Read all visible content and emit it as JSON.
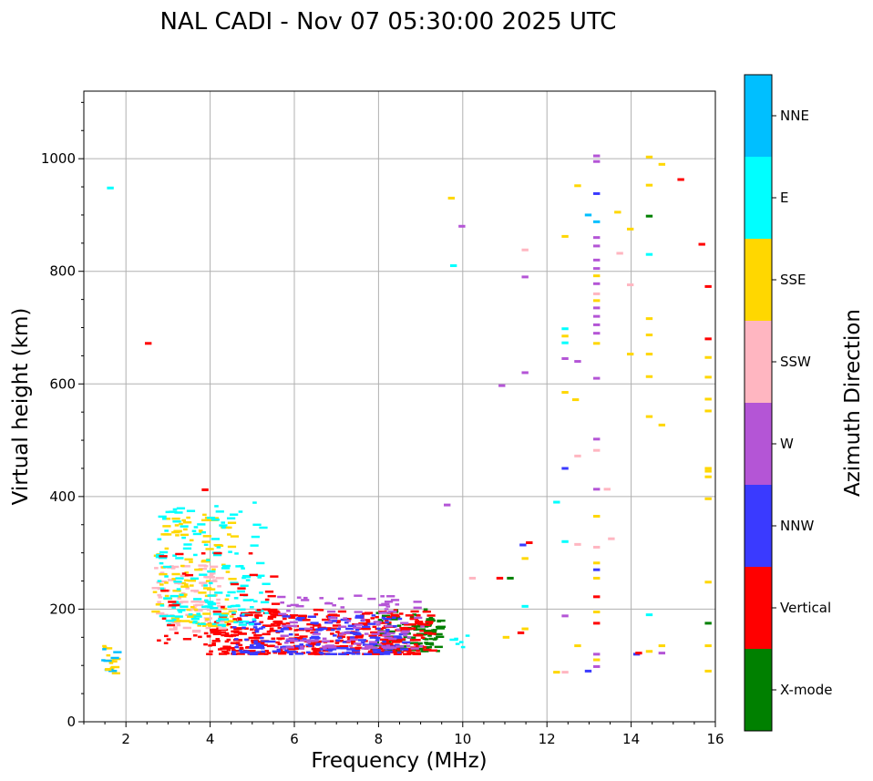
{
  "chart_data": {
    "type": "scatter",
    "subtype": "ionogram",
    "title": "NAL CADI - Nov 07 05:30:00 2025 UTC",
    "xlabel": "Frequency (MHz)",
    "ylabel": "Virtual height (km)",
    "xlim": [
      1,
      16
    ],
    "ylim": [
      0,
      1120
    ],
    "xticks": [
      2,
      4,
      6,
      8,
      10,
      12,
      14,
      16
    ],
    "yticks": [
      0,
      200,
      400,
      600,
      800,
      1000
    ],
    "grid": true,
    "colorbar": {
      "label": "Azimuth Direction",
      "categories": [
        {
          "name": "X-mode",
          "color": "#008000"
        },
        {
          "name": "Vertical",
          "color": "#ff0000"
        },
        {
          "name": "NNW",
          "color": "#3a3aff"
        },
        {
          "name": "W",
          "color": "#b455d6"
        },
        {
          "name": "SSW",
          "color": "#ffb6c1"
        },
        {
          "name": "SSE",
          "color": "#ffd700"
        },
        {
          "name": "E",
          "color": "#00ffff"
        },
        {
          "name": "NNE",
          "color": "#00bfff"
        }
      ]
    },
    "clusters": [
      {
        "category": "X-mode",
        "x": [
          7.8,
          9.4
        ],
        "y": [
          125,
          200
        ],
        "n": 110
      },
      {
        "category": "Vertical",
        "x": [
          3.9,
          9.2
        ],
        "y": [
          120,
          200
        ],
        "n": 380
      },
      {
        "category": "NNW",
        "x": [
          4.5,
          8.6
        ],
        "y": [
          120,
          190
        ],
        "n": 170
      },
      {
        "category": "W",
        "x": [
          5.5,
          9.0
        ],
        "y": [
          130,
          225
        ],
        "n": 110
      },
      {
        "category": "SSW",
        "x": [
          2.6,
          4.2
        ],
        "y": [
          160,
          280
        ],
        "n": 90
      },
      {
        "category": "SSE",
        "x": [
          2.6,
          4.5
        ],
        "y": [
          170,
          370
        ],
        "n": 110
      },
      {
        "category": "E",
        "x": [
          2.7,
          5.3
        ],
        "y": [
          170,
          390
        ],
        "n": 150
      },
      {
        "category": "Vertical",
        "x": [
          2.5,
          5.5
        ],
        "y": [
          130,
          300
        ],
        "n": 50
      },
      {
        "category": "SSE",
        "x": [
          1.4,
          1.7
        ],
        "y": [
          85,
          140
        ],
        "n": 12
      },
      {
        "category": "NNE",
        "x": [
          1.4,
          1.7
        ],
        "y": [
          90,
          135
        ],
        "n": 8
      },
      {
        "category": "E",
        "x": [
          9.5,
          10.1
        ],
        "y": [
          130,
          160
        ],
        "n": 6
      }
    ],
    "points": [
      {
        "category": "E",
        "x": 1.6,
        "y": 948
      },
      {
        "category": "Vertical",
        "x": 2.5,
        "y": 672
      },
      {
        "category": "Vertical",
        "x": 3.85,
        "y": 412
      },
      {
        "category": "W",
        "x": 9.6,
        "y": 385
      },
      {
        "category": "W",
        "x": 10.9,
        "y": 597
      },
      {
        "category": "SSE",
        "x": 9.7,
        "y": 930
      },
      {
        "category": "W",
        "x": 9.95,
        "y": 880
      },
      {
        "category": "E",
        "x": 9.75,
        "y": 810
      },
      {
        "category": "Vertical",
        "x": 10.85,
        "y": 255
      },
      {
        "category": "X-mode",
        "x": 11.1,
        "y": 255
      },
      {
        "category": "SSW",
        "x": 10.2,
        "y": 255
      },
      {
        "category": "SSE",
        "x": 11.0,
        "y": 150
      },
      {
        "category": "W",
        "x": 11.45,
        "y": 790
      },
      {
        "category": "SSW",
        "x": 11.45,
        "y": 838
      },
      {
        "category": "W",
        "x": 11.45,
        "y": 620
      },
      {
        "category": "NNW",
        "x": 11.4,
        "y": 314
      },
      {
        "category": "Vertical",
        "x": 11.55,
        "y": 318
      },
      {
        "category": "SSE",
        "x": 11.45,
        "y": 290
      },
      {
        "category": "E",
        "x": 11.45,
        "y": 205
      },
      {
        "category": "SSE",
        "x": 11.45,
        "y": 165
      },
      {
        "category": "Vertical",
        "x": 11.35,
        "y": 158
      },
      {
        "category": "E",
        "x": 12.2,
        "y": 390
      },
      {
        "category": "SSE",
        "x": 12.2,
        "y": 88
      },
      {
        "category": "SSW",
        "x": 12.4,
        "y": 88
      },
      {
        "category": "SSE",
        "x": 12.4,
        "y": 862
      },
      {
        "category": "E",
        "x": 12.4,
        "y": 698
      },
      {
        "category": "SSE",
        "x": 12.4,
        "y": 685
      },
      {
        "category": "E",
        "x": 12.4,
        "y": 673
      },
      {
        "category": "W",
        "x": 12.4,
        "y": 645
      },
      {
        "category": "SSE",
        "x": 12.4,
        "y": 585
      },
      {
        "category": "NNW",
        "x": 12.4,
        "y": 450
      },
      {
        "category": "E",
        "x": 12.4,
        "y": 320
      },
      {
        "category": "W",
        "x": 12.4,
        "y": 188
      },
      {
        "category": "SSE",
        "x": 12.7,
        "y": 952
      },
      {
        "category": "W",
        "x": 12.7,
        "y": 640
      },
      {
        "category": "SSE",
        "x": 12.65,
        "y": 572
      },
      {
        "category": "SSW",
        "x": 12.7,
        "y": 472
      },
      {
        "category": "SSW",
        "x": 12.7,
        "y": 315
      },
      {
        "category": "SSE",
        "x": 12.7,
        "y": 135
      },
      {
        "category": "NNE",
        "x": 12.95,
        "y": 900
      },
      {
        "category": "NNW",
        "x": 12.95,
        "y": 90
      },
      {
        "category": "W",
        "x": 13.15,
        "y": 1005
      },
      {
        "category": "W",
        "x": 13.15,
        "y": 995
      },
      {
        "category": "NNW",
        "x": 13.15,
        "y": 938
      },
      {
        "category": "NNE",
        "x": 13.15,
        "y": 888
      },
      {
        "category": "W",
        "x": 13.15,
        "y": 860
      },
      {
        "category": "W",
        "x": 13.15,
        "y": 845
      },
      {
        "category": "W",
        "x": 13.15,
        "y": 820
      },
      {
        "category": "W",
        "x": 13.15,
        "y": 805
      },
      {
        "category": "SSE",
        "x": 13.15,
        "y": 792
      },
      {
        "category": "W",
        "x": 13.15,
        "y": 778
      },
      {
        "category": "SSW",
        "x": 13.15,
        "y": 760
      },
      {
        "category": "SSE",
        "x": 13.15,
        "y": 748
      },
      {
        "category": "W",
        "x": 13.15,
        "y": 735
      },
      {
        "category": "W",
        "x": 13.15,
        "y": 720
      },
      {
        "category": "W",
        "x": 13.15,
        "y": 705
      },
      {
        "category": "W",
        "x": 13.15,
        "y": 690
      },
      {
        "category": "SSE",
        "x": 13.15,
        "y": 672
      },
      {
        "category": "W",
        "x": 13.15,
        "y": 610
      },
      {
        "category": "W",
        "x": 13.15,
        "y": 502
      },
      {
        "category": "SSW",
        "x": 13.15,
        "y": 482
      },
      {
        "category": "W",
        "x": 13.15,
        "y": 413
      },
      {
        "category": "SSE",
        "x": 13.15,
        "y": 365
      },
      {
        "category": "SSW",
        "x": 13.15,
        "y": 310
      },
      {
        "category": "SSE",
        "x": 13.15,
        "y": 282
      },
      {
        "category": "NNW",
        "x": 13.15,
        "y": 270
      },
      {
        "category": "SSE",
        "x": 13.15,
        "y": 255
      },
      {
        "category": "Vertical",
        "x": 13.15,
        "y": 222
      },
      {
        "category": "SSE",
        "x": 13.15,
        "y": 195
      },
      {
        "category": "Vertical",
        "x": 13.15,
        "y": 175
      },
      {
        "category": "W",
        "x": 13.15,
        "y": 120
      },
      {
        "category": "SSE",
        "x": 13.15,
        "y": 110
      },
      {
        "category": "W",
        "x": 13.15,
        "y": 98
      },
      {
        "category": "SSW",
        "x": 13.4,
        "y": 413
      },
      {
        "category": "SSW",
        "x": 13.5,
        "y": 325
      },
      {
        "category": "SSE",
        "x": 13.65,
        "y": 905
      },
      {
        "category": "SSW",
        "x": 13.7,
        "y": 832
      },
      {
        "category": "SSE",
        "x": 13.95,
        "y": 875
      },
      {
        "category": "SSW",
        "x": 13.95,
        "y": 776
      },
      {
        "category": "SSE",
        "x": 13.95,
        "y": 653
      },
      {
        "category": "NNW",
        "x": 14.1,
        "y": 120
      },
      {
        "category": "Vertical",
        "x": 14.15,
        "y": 122
      },
      {
        "category": "SSE",
        "x": 14.4,
        "y": 1003
      },
      {
        "category": "SSE",
        "x": 14.4,
        "y": 953
      },
      {
        "category": "X-mode",
        "x": 14.4,
        "y": 898
      },
      {
        "category": "E",
        "x": 14.4,
        "y": 830
      },
      {
        "category": "SSE",
        "x": 14.4,
        "y": 716
      },
      {
        "category": "SSE",
        "x": 14.4,
        "y": 687
      },
      {
        "category": "SSE",
        "x": 14.4,
        "y": 653
      },
      {
        "category": "SSE",
        "x": 14.4,
        "y": 613
      },
      {
        "category": "SSE",
        "x": 14.4,
        "y": 542
      },
      {
        "category": "E",
        "x": 14.4,
        "y": 190
      },
      {
        "category": "SSE",
        "x": 14.4,
        "y": 125
      },
      {
        "category": "SSE",
        "x": 14.7,
        "y": 990
      },
      {
        "category": "SSE",
        "x": 14.7,
        "y": 527
      },
      {
        "category": "SSE",
        "x": 14.7,
        "y": 135
      },
      {
        "category": "W",
        "x": 14.7,
        "y": 122
      },
      {
        "category": "Vertical",
        "x": 15.15,
        "y": 963
      },
      {
        "category": "Vertical",
        "x": 15.65,
        "y": 848
      },
      {
        "category": "Vertical",
        "x": 15.8,
        "y": 773
      },
      {
        "category": "Vertical",
        "x": 15.8,
        "y": 680
      },
      {
        "category": "SSE",
        "x": 15.8,
        "y": 647
      },
      {
        "category": "SSE",
        "x": 15.8,
        "y": 612
      },
      {
        "category": "SSE",
        "x": 15.8,
        "y": 573
      },
      {
        "category": "SSE",
        "x": 15.8,
        "y": 552
      },
      {
        "category": "SSE",
        "x": 15.8,
        "y": 450
      },
      {
        "category": "SSE",
        "x": 15.8,
        "y": 445
      },
      {
        "category": "SSE",
        "x": 15.8,
        "y": 435
      },
      {
        "category": "SSE",
        "x": 15.8,
        "y": 396
      },
      {
        "category": "SSE",
        "x": 15.8,
        "y": 248
      },
      {
        "category": "X-mode",
        "x": 15.8,
        "y": 175
      },
      {
        "category": "SSE",
        "x": 15.8,
        "y": 135
      },
      {
        "category": "SSE",
        "x": 15.8,
        "y": 90
      },
      {
        "category": "SSE",
        "x": 1.55,
        "y": 93
      }
    ]
  }
}
